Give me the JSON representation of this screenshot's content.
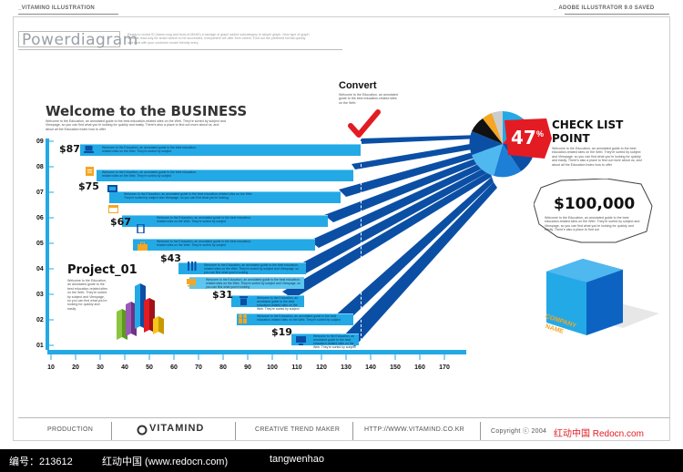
{
  "header": {
    "left": "_VITAMINO ILLUSTRATION",
    "right": "_ ADOBE ILLUSTRATOR 9.0 SAVED"
  },
  "powerdiagram": {
    "title": "Powerdiagram",
    "blurb": "Ready to crowd ID (frame-slug and front-of-MAKE) a barrage of graph added subcategory to simple graph. New type of graph is made read-only for smart search to be successful, everywhere we offer from others. Find out the preferred format quickly and start with your customer model friendly entry."
  },
  "business": {
    "title": "Welcome to the BUSINESS",
    "text": "Welcome to the Education, an annotated guide to the best education-related sites on the Web. They're sorted by subject and Viewpage, so you can find what you're looking for quickly and easily. There's also a place to find out more about us, and about all the Education Index how to offer"
  },
  "convert": {
    "title": "Convert",
    "text": "Welcome to the Education, an annotated guide to the best education-related sites on the Web."
  },
  "checklist": {
    "title_line1": "CHECK LIST",
    "title_line2": "POINT",
    "percent": "47",
    "percent_sign": "%",
    "text": "Welcome to the Education, an annotated guide to the best education-related sites on the Web. They're sorted by subject and Viewpage, so you can find what you're looking for quickly and easily. There's also a place to find out more about us, and about all the Education Index how to offer"
  },
  "money": {
    "amount": "$100,000",
    "text": "Welcome to the Education, an annotated guide to the best education-related sites on the Web. They're sorted by subject and Viewpage, so you can find what you're looking for quickly and easily. There's also a place to find out"
  },
  "company": {
    "line1": "COMPANY",
    "line2": "NAME"
  },
  "project": {
    "title": "Project_01",
    "text": "Welcome to the Education, an annotated guide to the best education-related sites on the Web. They're sorted by subject and Viewpage, so you can find what you're looking for quickly and easily."
  },
  "prices": [
    "$87",
    "$75",
    "$67",
    "$43",
    "$31",
    "$19"
  ],
  "bar_text": {
    "short": "Welcome to the Education, an annotated guide to the best education-related sites on the Web. They're sorted by subject",
    "long": "Welcome to the Education, an annotated guide to the best education-related sites on the Web. They're sorted by subject and Viewpage, so you can find what you're looking"
  },
  "y_axis": [
    "09",
    "08",
    "07",
    "06",
    "05",
    "04",
    "03",
    "02",
    "01"
  ],
  "x_axis": [
    "10",
    "20",
    "30",
    "40",
    "50",
    "60",
    "70",
    "80",
    "90",
    "100",
    "110",
    "120",
    "130",
    "140",
    "150",
    "160",
    "170"
  ],
  "footer": {
    "production": "PRODUCTION",
    "logo": "VITAMIND",
    "creative": "CREATIVE TREND MAKER",
    "url": "HTTP://WWW.VITAMIND.CO.KR",
    "copyright": "Copyright ⓒ 2004",
    "watermark": "红动中国 Redocn.com"
  },
  "bottom_bar": {
    "id": "编号：213612",
    "site": "红动中国 (www.redocn.com)",
    "author": "tangwenhao"
  },
  "colors": {
    "bar_blue": "#23a9e6",
    "dark_blue": "#0b4fa5",
    "red": "#e31b23",
    "orange": "#f5a623"
  }
}
